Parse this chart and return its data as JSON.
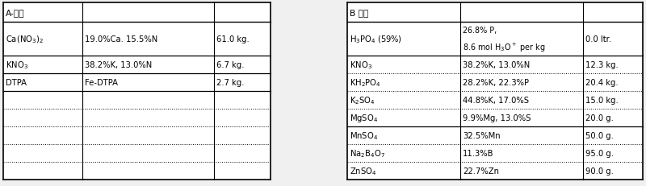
{
  "title_A": "A-溶液",
  "title_B": "B 溶液",
  "rows_A": [
    [
      "Ca(NO$_3$)$_2$",
      "19.0%Ca. 15.5%N",
      "61.0 kg."
    ],
    [
      "",
      "",
      ""
    ],
    [
      "KNO$_3$",
      "38.2%K, 13.0%N",
      "6.7 kg."
    ],
    [
      "DTPA",
      "Fe-DTPA",
      "2.7 kg."
    ],
    [
      "",
      "",
      ""
    ],
    [
      "",
      "",
      ""
    ],
    [
      "",
      "",
      ""
    ],
    [
      "",
      "",
      ""
    ],
    [
      "",
      "",
      ""
    ]
  ],
  "rows_B": [
    [
      "H$_3$PO$_4$ (59%)",
      "26.8% P,\n8.6 mol H$_3$O$^+$ per kg",
      "0.0 ltr."
    ],
    [
      "KNO$_3$",
      "38.2%K, 13.0%N",
      "12.3 kg."
    ],
    [
      "KH$_2$PO$_4$",
      "28.2%K, 22.3%P",
      "20.4 kg."
    ],
    [
      "K$_2$SO$_4$",
      "44.8%K, 17.0%S",
      "15.0 kg."
    ],
    [
      "MgSO$_4$",
      "9.9%Mg, 13.0%S",
      "20.0 g."
    ],
    [
      "MnSO$_4$",
      "32.5%Mn",
      "50.0 g."
    ],
    [
      "Na$_2$B$_4$O$_7$",
      "11.3%B",
      "95.0 g."
    ],
    [
      "ZnSO$_4$",
      "22.7%Zn",
      "90.0 g."
    ]
  ],
  "bg_color": "#f0f0f0",
  "border_color": "#000000",
  "text_color": "#000000",
  "font_size": 7.2
}
